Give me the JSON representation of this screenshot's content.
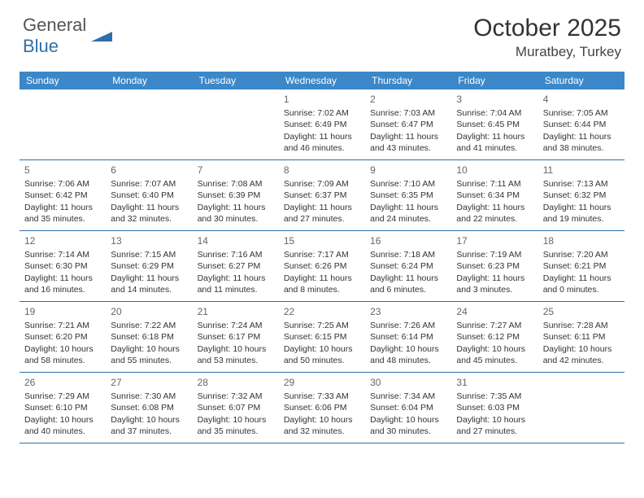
{
  "brand": {
    "text_a": "General",
    "text_b": "Blue",
    "logo_color": "#2f6fa8"
  },
  "title": "October 2025",
  "location": "Muratbey, Turkey",
  "header_bg": "#3b87c8",
  "header_text_color": "#ffffff",
  "border_color": "#2f6fa8",
  "font_family": "Arial, Helvetica, sans-serif",
  "day_names": [
    "Sunday",
    "Monday",
    "Tuesday",
    "Wednesday",
    "Thursday",
    "Friday",
    "Saturday"
  ],
  "weeks": [
    [
      null,
      null,
      null,
      {
        "num": "1",
        "sunrise": "Sunrise: 7:02 AM",
        "sunset": "Sunset: 6:49 PM",
        "daylight": "Daylight: 11 hours and 46 minutes."
      },
      {
        "num": "2",
        "sunrise": "Sunrise: 7:03 AM",
        "sunset": "Sunset: 6:47 PM",
        "daylight": "Daylight: 11 hours and 43 minutes."
      },
      {
        "num": "3",
        "sunrise": "Sunrise: 7:04 AM",
        "sunset": "Sunset: 6:45 PM",
        "daylight": "Daylight: 11 hours and 41 minutes."
      },
      {
        "num": "4",
        "sunrise": "Sunrise: 7:05 AM",
        "sunset": "Sunset: 6:44 PM",
        "daylight": "Daylight: 11 hours and 38 minutes."
      }
    ],
    [
      {
        "num": "5",
        "sunrise": "Sunrise: 7:06 AM",
        "sunset": "Sunset: 6:42 PM",
        "daylight": "Daylight: 11 hours and 35 minutes."
      },
      {
        "num": "6",
        "sunrise": "Sunrise: 7:07 AM",
        "sunset": "Sunset: 6:40 PM",
        "daylight": "Daylight: 11 hours and 32 minutes."
      },
      {
        "num": "7",
        "sunrise": "Sunrise: 7:08 AM",
        "sunset": "Sunset: 6:39 PM",
        "daylight": "Daylight: 11 hours and 30 minutes."
      },
      {
        "num": "8",
        "sunrise": "Sunrise: 7:09 AM",
        "sunset": "Sunset: 6:37 PM",
        "daylight": "Daylight: 11 hours and 27 minutes."
      },
      {
        "num": "9",
        "sunrise": "Sunrise: 7:10 AM",
        "sunset": "Sunset: 6:35 PM",
        "daylight": "Daylight: 11 hours and 24 minutes."
      },
      {
        "num": "10",
        "sunrise": "Sunrise: 7:11 AM",
        "sunset": "Sunset: 6:34 PM",
        "daylight": "Daylight: 11 hours and 22 minutes."
      },
      {
        "num": "11",
        "sunrise": "Sunrise: 7:13 AM",
        "sunset": "Sunset: 6:32 PM",
        "daylight": "Daylight: 11 hours and 19 minutes."
      }
    ],
    [
      {
        "num": "12",
        "sunrise": "Sunrise: 7:14 AM",
        "sunset": "Sunset: 6:30 PM",
        "daylight": "Daylight: 11 hours and 16 minutes."
      },
      {
        "num": "13",
        "sunrise": "Sunrise: 7:15 AM",
        "sunset": "Sunset: 6:29 PM",
        "daylight": "Daylight: 11 hours and 14 minutes."
      },
      {
        "num": "14",
        "sunrise": "Sunrise: 7:16 AM",
        "sunset": "Sunset: 6:27 PM",
        "daylight": "Daylight: 11 hours and 11 minutes."
      },
      {
        "num": "15",
        "sunrise": "Sunrise: 7:17 AM",
        "sunset": "Sunset: 6:26 PM",
        "daylight": "Daylight: 11 hours and 8 minutes."
      },
      {
        "num": "16",
        "sunrise": "Sunrise: 7:18 AM",
        "sunset": "Sunset: 6:24 PM",
        "daylight": "Daylight: 11 hours and 6 minutes."
      },
      {
        "num": "17",
        "sunrise": "Sunrise: 7:19 AM",
        "sunset": "Sunset: 6:23 PM",
        "daylight": "Daylight: 11 hours and 3 minutes."
      },
      {
        "num": "18",
        "sunrise": "Sunrise: 7:20 AM",
        "sunset": "Sunset: 6:21 PM",
        "daylight": "Daylight: 11 hours and 0 minutes."
      }
    ],
    [
      {
        "num": "19",
        "sunrise": "Sunrise: 7:21 AM",
        "sunset": "Sunset: 6:20 PM",
        "daylight": "Daylight: 10 hours and 58 minutes."
      },
      {
        "num": "20",
        "sunrise": "Sunrise: 7:22 AM",
        "sunset": "Sunset: 6:18 PM",
        "daylight": "Daylight: 10 hours and 55 minutes."
      },
      {
        "num": "21",
        "sunrise": "Sunrise: 7:24 AM",
        "sunset": "Sunset: 6:17 PM",
        "daylight": "Daylight: 10 hours and 53 minutes."
      },
      {
        "num": "22",
        "sunrise": "Sunrise: 7:25 AM",
        "sunset": "Sunset: 6:15 PM",
        "daylight": "Daylight: 10 hours and 50 minutes."
      },
      {
        "num": "23",
        "sunrise": "Sunrise: 7:26 AM",
        "sunset": "Sunset: 6:14 PM",
        "daylight": "Daylight: 10 hours and 48 minutes."
      },
      {
        "num": "24",
        "sunrise": "Sunrise: 7:27 AM",
        "sunset": "Sunset: 6:12 PM",
        "daylight": "Daylight: 10 hours and 45 minutes."
      },
      {
        "num": "25",
        "sunrise": "Sunrise: 7:28 AM",
        "sunset": "Sunset: 6:11 PM",
        "daylight": "Daylight: 10 hours and 42 minutes."
      }
    ],
    [
      {
        "num": "26",
        "sunrise": "Sunrise: 7:29 AM",
        "sunset": "Sunset: 6:10 PM",
        "daylight": "Daylight: 10 hours and 40 minutes."
      },
      {
        "num": "27",
        "sunrise": "Sunrise: 7:30 AM",
        "sunset": "Sunset: 6:08 PM",
        "daylight": "Daylight: 10 hours and 37 minutes."
      },
      {
        "num": "28",
        "sunrise": "Sunrise: 7:32 AM",
        "sunset": "Sunset: 6:07 PM",
        "daylight": "Daylight: 10 hours and 35 minutes."
      },
      {
        "num": "29",
        "sunrise": "Sunrise: 7:33 AM",
        "sunset": "Sunset: 6:06 PM",
        "daylight": "Daylight: 10 hours and 32 minutes."
      },
      {
        "num": "30",
        "sunrise": "Sunrise: 7:34 AM",
        "sunset": "Sunset: 6:04 PM",
        "daylight": "Daylight: 10 hours and 30 minutes."
      },
      {
        "num": "31",
        "sunrise": "Sunrise: 7:35 AM",
        "sunset": "Sunset: 6:03 PM",
        "daylight": "Daylight: 10 hours and 27 minutes."
      },
      null
    ]
  ]
}
